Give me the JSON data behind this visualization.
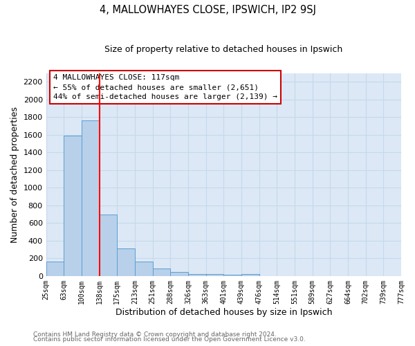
{
  "title": "4, MALLOWHAYES CLOSE, IPSWICH, IP2 9SJ",
  "subtitle": "Size of property relative to detached houses in Ipswich",
  "xlabel": "Distribution of detached houses by size in Ipswich",
  "ylabel": "Number of detached properties",
  "bar_values": [
    160,
    1590,
    1760,
    700,
    315,
    160,
    85,
    45,
    25,
    20,
    15,
    20,
    0,
    0,
    0,
    0,
    0,
    0,
    0,
    0
  ],
  "bin_labels": [
    "25sqm",
    "63sqm",
    "100sqm",
    "138sqm",
    "175sqm",
    "213sqm",
    "251sqm",
    "288sqm",
    "326sqm",
    "363sqm",
    "401sqm",
    "439sqm",
    "476sqm",
    "514sqm",
    "551sqm",
    "589sqm",
    "627sqm",
    "664sqm",
    "702sqm",
    "739sqm",
    "777sqm"
  ],
  "bar_color": "#b8d0ea",
  "bar_edge_color": "#5a9fd4",
  "grid_color": "#c5d8ec",
  "background_color": "#dce8f5",
  "red_line_index": 3,
  "annotation_text": "4 MALLOWHAYES CLOSE: 117sqm\n← 55% of detached houses are smaller (2,651)\n44% of semi-detached houses are larger (2,139) →",
  "annotation_box_color": "#ffffff",
  "annotation_box_edge": "#cc0000",
  "ylim": [
    0,
    2300
  ],
  "yticks": [
    0,
    200,
    400,
    600,
    800,
    1000,
    1200,
    1400,
    1600,
    1800,
    2000,
    2200
  ],
  "footer1": "Contains HM Land Registry data © Crown copyright and database right 2024.",
  "footer2": "Contains public sector information licensed under the Open Government Licence v3.0."
}
